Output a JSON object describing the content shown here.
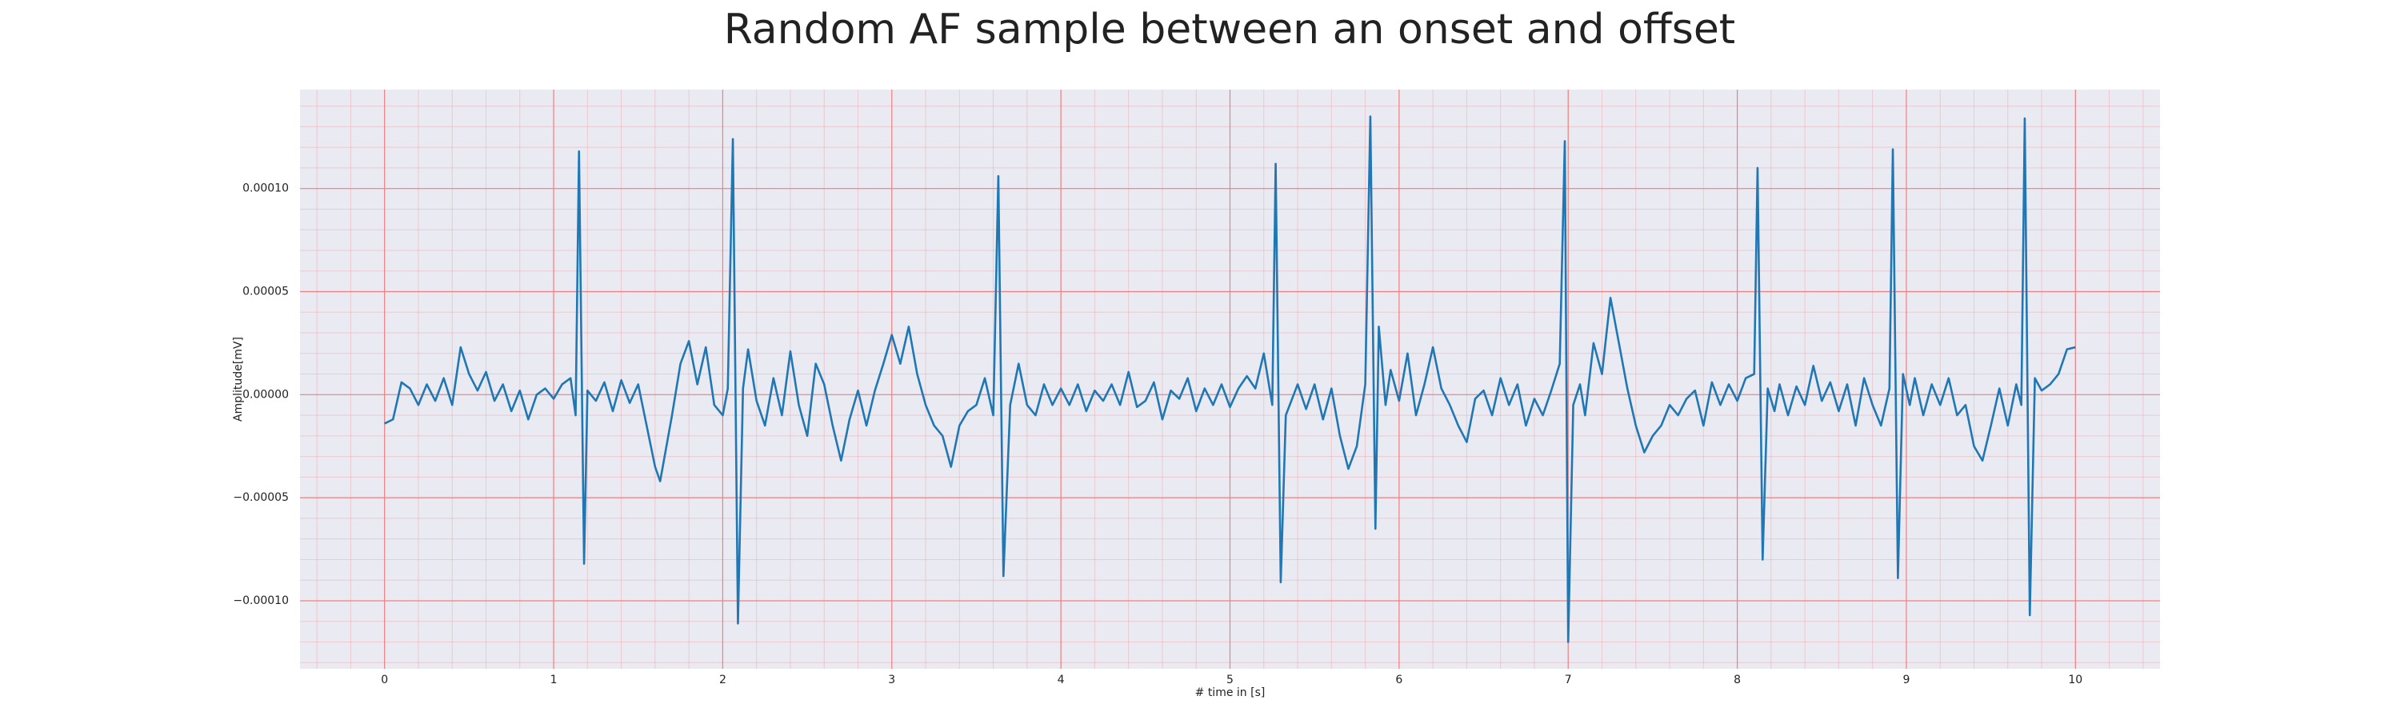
{
  "chart_data": {
    "type": "line",
    "title": "Random AF sample between an onset and offset",
    "x_label": "# time in [s]",
    "y_label": "Amplitude[mV]",
    "x": [
      0,
      0.05,
      0.1,
      0.15,
      0.2,
      0.25,
      0.3,
      0.35,
      0.4,
      0.45,
      0.5,
      0.55,
      0.6,
      0.65,
      0.7,
      0.75,
      0.8,
      0.85,
      0.9,
      0.95,
      1.0,
      1.05,
      1.1,
      1.13,
      1.15,
      1.18,
      1.2,
      1.25,
      1.3,
      1.35,
      1.4,
      1.45,
      1.5,
      1.55,
      1.6,
      1.63,
      1.7,
      1.75,
      1.8,
      1.85,
      1.9,
      1.95,
      2.0,
      2.03,
      2.06,
      2.09,
      2.12,
      2.15,
      2.2,
      2.25,
      2.3,
      2.35,
      2.4,
      2.45,
      2.5,
      2.55,
      2.6,
      2.65,
      2.7,
      2.75,
      2.8,
      2.85,
      2.9,
      2.95,
      3.0,
      3.05,
      3.1,
      3.15,
      3.2,
      3.25,
      3.3,
      3.35,
      3.4,
      3.45,
      3.5,
      3.55,
      3.6,
      3.63,
      3.66,
      3.7,
      3.75,
      3.8,
      3.85,
      3.9,
      3.95,
      4.0,
      4.05,
      4.1,
      4.15,
      4.2,
      4.25,
      4.3,
      4.35,
      4.4,
      4.45,
      4.5,
      4.55,
      4.6,
      4.65,
      4.7,
      4.75,
      4.8,
      4.85,
      4.9,
      4.95,
      5.0,
      5.05,
      5.1,
      5.15,
      5.2,
      5.25,
      5.27,
      5.3,
      5.33,
      5.4,
      5.45,
      5.5,
      5.55,
      5.6,
      5.65,
      5.7,
      5.75,
      5.8,
      5.83,
      5.86,
      5.88,
      5.92,
      5.95,
      6.0,
      6.05,
      6.1,
      6.15,
      6.2,
      6.25,
      6.3,
      6.35,
      6.4,
      6.45,
      6.5,
      6.55,
      6.6,
      6.65,
      6.7,
      6.75,
      6.8,
      6.85,
      6.9,
      6.95,
      6.98,
      7.0,
      7.03,
      7.07,
      7.1,
      7.15,
      7.2,
      7.25,
      7.3,
      7.35,
      7.4,
      7.45,
      7.5,
      7.55,
      7.6,
      7.65,
      7.7,
      7.75,
      7.8,
      7.85,
      7.9,
      7.95,
      8.0,
      8.05,
      8.1,
      8.12,
      8.15,
      8.18,
      8.22,
      8.25,
      8.3,
      8.35,
      8.4,
      8.45,
      8.5,
      8.55,
      8.6,
      8.65,
      8.7,
      8.75,
      8.8,
      8.85,
      8.9,
      8.92,
      8.95,
      8.98,
      9.02,
      9.05,
      9.1,
      9.15,
      9.2,
      9.25,
      9.3,
      9.35,
      9.4,
      9.45,
      9.5,
      9.55,
      9.6,
      9.65,
      9.68,
      9.7,
      9.73,
      9.76,
      9.8,
      9.85,
      9.9,
      9.95,
      10.0
    ],
    "series": [
      {
        "name": "signal",
        "color": "#1f77b4",
        "values": [
          -1.4e-05,
          -1.2e-05,
          6e-06,
          3e-06,
          -5e-06,
          5e-06,
          -3e-06,
          8e-06,
          -5e-06,
          2.3e-05,
          1e-05,
          2e-06,
          1.1e-05,
          -3e-06,
          5e-06,
          -8e-06,
          2e-06,
          -1.2e-05,
          0,
          3e-06,
          -2e-06,
          5e-06,
          8e-06,
          -1e-05,
          0.000118,
          -8.2e-05,
          2e-06,
          -3e-06,
          6e-06,
          -8e-06,
          7e-06,
          -4e-06,
          5e-06,
          -1.5e-05,
          -3.5e-05,
          -4.2e-05,
          -1e-05,
          1.5e-05,
          2.6e-05,
          5e-06,
          2.3e-05,
          -5e-06,
          -1e-05,
          3e-06,
          0.000124,
          -0.000111,
          3e-06,
          2.2e-05,
          -3e-06,
          -1.5e-05,
          8e-06,
          -1e-05,
          2.1e-05,
          -5e-06,
          -2e-05,
          1.5e-05,
          5e-06,
          -1.5e-05,
          -3.2e-05,
          -1.2e-05,
          2e-06,
          -1.5e-05,
          2e-06,
          1.5e-05,
          2.9e-05,
          1.5e-05,
          3.3e-05,
          1e-05,
          -5e-06,
          -1.5e-05,
          -2e-05,
          -3.5e-05,
          -1.5e-05,
          -8e-06,
          -5e-06,
          8e-06,
          -1e-05,
          0.000106,
          -8.8e-05,
          -5e-06,
          1.5e-05,
          -5e-06,
          -1e-05,
          5e-06,
          -5e-06,
          3e-06,
          -5e-06,
          5e-06,
          -8e-06,
          2e-06,
          -3e-06,
          5e-06,
          -5e-06,
          1.1e-05,
          -6e-06,
          -3e-06,
          6e-06,
          -1.2e-05,
          2e-06,
          -2e-06,
          8e-06,
          -8e-06,
          3e-06,
          -5e-06,
          5e-06,
          -6e-06,
          3e-06,
          9e-06,
          3e-06,
          2e-05,
          -5e-06,
          0.000112,
          -9.1e-05,
          -1e-05,
          5e-06,
          -7e-06,
          5e-06,
          -1.2e-05,
          3e-06,
          -2e-05,
          -3.6e-05,
          -2.5e-05,
          5e-06,
          0.000135,
          -6.5e-05,
          3.3e-05,
          -5e-06,
          1.2e-05,
          -3e-06,
          2e-05,
          -1e-05,
          5e-06,
          2.3e-05,
          3e-06,
          -5e-06,
          -1.5e-05,
          -2.3e-05,
          -2e-06,
          2e-06,
          -1e-05,
          8e-06,
          -5e-06,
          5e-06,
          -1.5e-05,
          -2e-06,
          -1e-05,
          2e-06,
          1.5e-05,
          0.000123,
          -0.00012,
          -5e-06,
          5e-06,
          -1e-05,
          2.5e-05,
          1e-05,
          4.7e-05,
          2.5e-05,
          3e-06,
          -1.5e-05,
          -2.8e-05,
          -2e-05,
          -1.5e-05,
          -5e-06,
          -1e-05,
          -2e-06,
          2e-06,
          -1.5e-05,
          6e-06,
          -5e-06,
          5e-06,
          -3e-06,
          8e-06,
          1e-05,
          0.00011,
          -8e-05,
          3e-06,
          -8e-06,
          5e-06,
          -1e-05,
          4e-06,
          -5e-06,
          1.4e-05,
          -3e-06,
          6e-06,
          -8e-06,
          5e-06,
          -1.5e-05,
          8e-06,
          -5e-06,
          -1.5e-05,
          3e-06,
          0.000119,
          -8.9e-05,
          1e-05,
          -5e-06,
          8e-06,
          -1e-05,
          5e-06,
          -5e-06,
          8e-06,
          -1e-05,
          -5e-06,
          -2.5e-05,
          -3.2e-05,
          -1.5e-05,
          3e-06,
          -1.5e-05,
          5e-06,
          -5e-06,
          0.000134,
          -0.000107,
          8e-06,
          2e-06,
          5e-06,
          1e-05,
          2.2e-05,
          2.3e-05
        ]
      }
    ],
    "xlim": [
      -0.5,
      10.5
    ],
    "ylim": [
      -0.000133,
      0.000148
    ],
    "xticks": [
      0,
      1,
      2,
      3,
      4,
      5,
      6,
      7,
      8,
      9,
      10
    ],
    "yticks": [
      {
        "value": -0.0001,
        "label": "−0.00010"
      },
      {
        "value": -5e-05,
        "label": "−0.00005"
      },
      {
        "value": 0,
        "label": "0.00000"
      },
      {
        "value": 5e-05,
        "label": "0.00005"
      },
      {
        "value": 0.0001,
        "label": "0.00010"
      }
    ],
    "grid": true,
    "minor_grid": true,
    "background": "#eaeaf2",
    "grid_color": "#f08080"
  }
}
